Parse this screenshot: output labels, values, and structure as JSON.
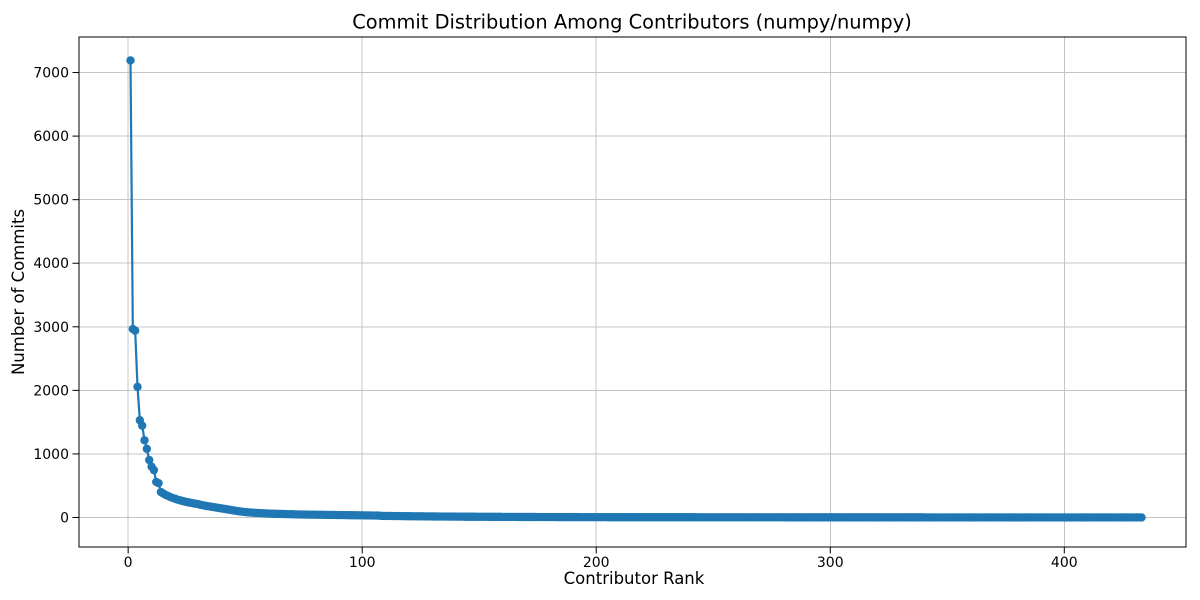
{
  "figure": {
    "background_color": "#ffffff",
    "text_color": "#000000"
  },
  "chart_data": {
    "type": "line",
    "title": "Commit Distribution Among Contributors (numpy/numpy)",
    "xlabel": "Contributor Rank",
    "ylabel": "Number of Commits",
    "grid": true,
    "legend": "none",
    "marker": "circle",
    "line_color": "#1f77b4",
    "grid_color": "#c4c4c4",
    "spine_color": "#000000",
    "xlim": [
      -21,
      452
    ],
    "ylim": [
      -464,
      7559
    ],
    "xticks": [
      0,
      100,
      200,
      300,
      400
    ],
    "yticks": [
      0,
      1000,
      2000,
      3000,
      4000,
      5000,
      6000,
      7000
    ],
    "x_meaning": "contributor rank, starting at 1",
    "y_meaning": "number of commits",
    "n_points": 433,
    "rle_note": "values_rle is run-length encoded [commits, contributor_count]; expanding in order gives the y-value for ranks 1..433",
    "values_rle": [
      [
        7190,
        1
      ],
      [
        2965,
        1
      ],
      [
        2940,
        1
      ],
      [
        2055,
        1
      ],
      [
        1530,
        1
      ],
      [
        1445,
        1
      ],
      [
        1215,
        1
      ],
      [
        1080,
        1
      ],
      [
        905,
        1
      ],
      [
        800,
        1
      ],
      [
        745,
        1
      ],
      [
        560,
        1
      ],
      [
        540,
        1
      ],
      [
        400,
        1
      ],
      [
        378,
        1
      ],
      [
        355,
        1
      ],
      [
        340,
        1
      ],
      [
        322,
        1
      ],
      [
        308,
        1
      ],
      [
        295,
        1
      ],
      [
        283,
        1
      ],
      [
        272,
        1
      ],
      [
        262,
        1
      ],
      [
        252,
        1
      ],
      [
        244,
        1
      ],
      [
        236,
        1
      ],
      [
        229,
        1
      ],
      [
        222,
        1
      ],
      [
        215,
        1
      ],
      [
        209,
        1
      ],
      [
        200,
        1
      ],
      [
        192,
        1
      ],
      [
        185,
        1
      ],
      [
        178,
        1
      ],
      [
        172,
        1
      ],
      [
        166,
        1
      ],
      [
        160,
        1
      ],
      [
        154,
        1
      ],
      [
        148,
        1
      ],
      [
        142,
        1
      ],
      [
        136,
        1
      ],
      [
        130,
        1
      ],
      [
        124,
        1
      ],
      [
        118,
        1
      ],
      [
        112,
        1
      ],
      [
        106,
        1
      ],
      [
        100,
        1
      ],
      [
        95,
        1
      ],
      [
        90,
        1
      ],
      [
        86,
        1
      ],
      [
        82,
        1
      ],
      [
        79,
        1
      ],
      [
        76,
        1
      ],
      [
        74,
        1
      ],
      [
        72,
        1
      ],
      [
        70,
        1
      ],
      [
        68,
        1
      ],
      [
        66,
        1
      ],
      [
        64,
        1
      ],
      [
        62,
        1
      ],
      [
        60,
        1
      ],
      [
        59,
        1
      ],
      [
        58,
        1
      ],
      [
        57,
        1
      ],
      [
        56,
        1
      ],
      [
        55,
        1
      ],
      [
        54,
        1
      ],
      [
        53,
        1
      ],
      [
        52,
        1
      ],
      [
        51,
        1
      ],
      [
        50,
        1
      ],
      [
        49,
        1
      ],
      [
        48,
        1
      ],
      [
        47,
        1
      ],
      [
        46,
        2
      ],
      [
        45,
        2
      ],
      [
        44,
        2
      ],
      [
        43,
        2
      ],
      [
        42,
        2
      ],
      [
        41,
        2
      ],
      [
        40,
        2
      ],
      [
        39,
        2
      ],
      [
        38,
        2
      ],
      [
        37,
        2
      ],
      [
        36,
        2
      ],
      [
        35,
        2
      ],
      [
        34,
        2
      ],
      [
        33,
        2
      ],
      [
        32,
        2
      ],
      [
        31,
        2
      ],
      [
        30,
        1
      ],
      [
        26,
        1
      ],
      [
        25,
        2
      ],
      [
        24,
        2
      ],
      [
        23,
        2
      ],
      [
        22,
        2
      ],
      [
        21,
        2
      ],
      [
        20,
        2
      ],
      [
        19,
        3
      ],
      [
        18,
        3
      ],
      [
        17,
        3
      ],
      [
        16,
        3
      ],
      [
        15,
        3
      ],
      [
        14,
        4
      ],
      [
        13,
        4
      ],
      [
        12,
        5
      ],
      [
        11,
        5
      ],
      [
        10,
        6
      ],
      [
        9,
        7
      ],
      [
        8,
        8
      ],
      [
        7,
        8
      ],
      [
        6,
        10
      ],
      [
        5,
        12
      ],
      [
        4,
        38
      ],
      [
        3,
        38
      ],
      [
        2,
        60
      ],
      [
        1,
        93
      ]
    ]
  }
}
